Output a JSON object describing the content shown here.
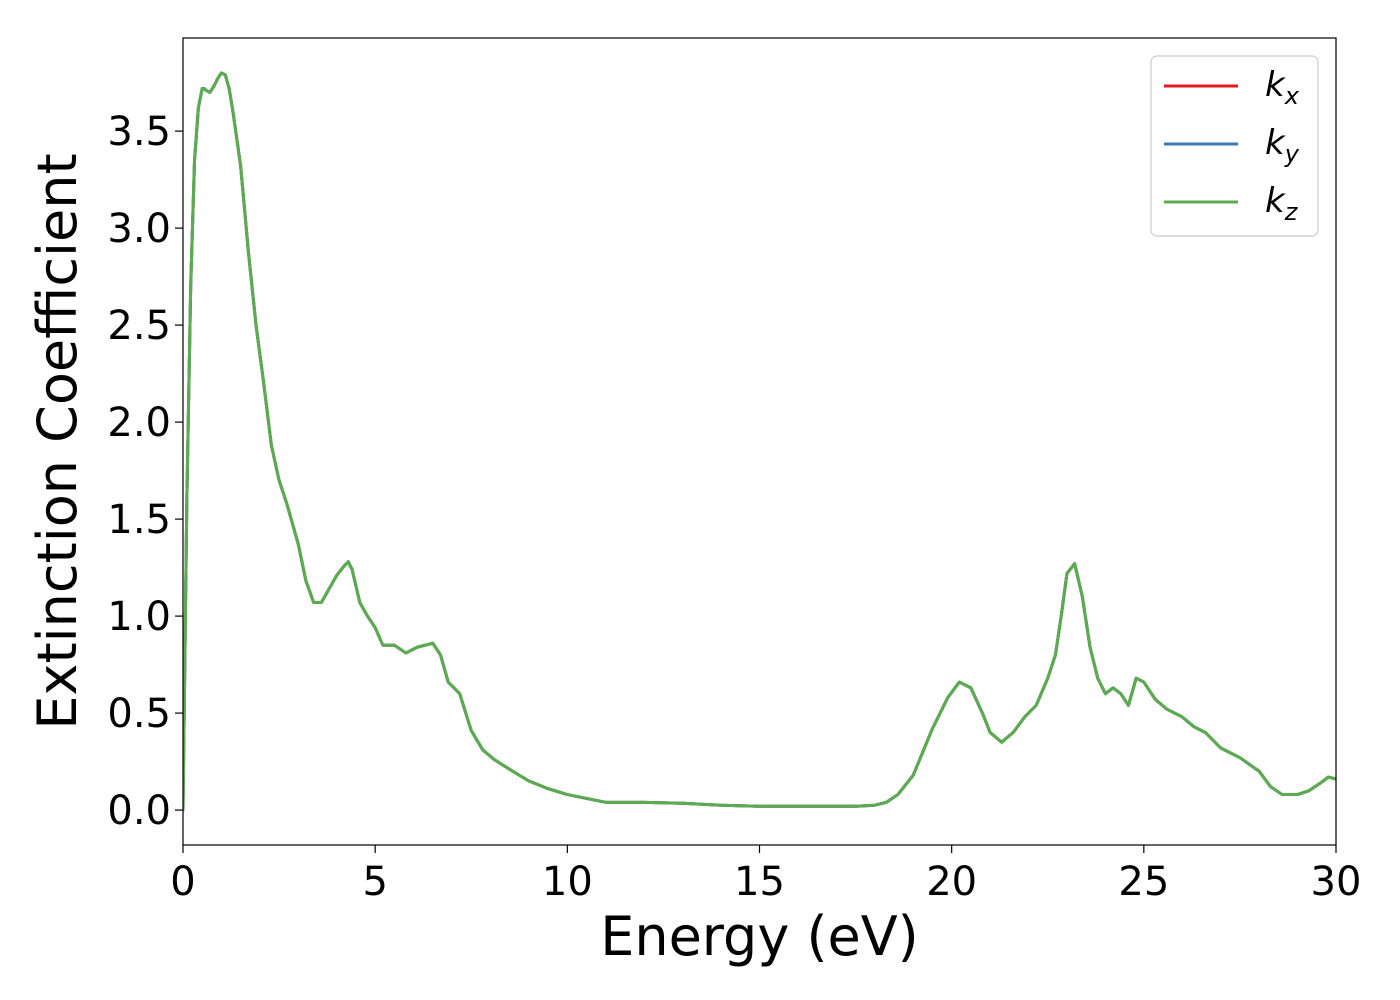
{
  "chart_data": {
    "type": "line",
    "title": "",
    "xlabel": "Energy (eV)",
    "ylabel": "Extinction Coefficient",
    "xlim": [
      0,
      30
    ],
    "ylim": [
      -0.18,
      3.98
    ],
    "xticks": [
      0,
      5,
      10,
      15,
      20,
      25,
      30
    ],
    "xtick_labels": [
      "0",
      "5",
      "10",
      "15",
      "20",
      "25",
      "30"
    ],
    "yticks": [
      0.0,
      0.5,
      1.0,
      1.5,
      2.0,
      2.5,
      3.0,
      3.5
    ],
    "ytick_labels": [
      "0.0",
      "0.5",
      "1.0",
      "1.5",
      "2.0",
      "2.5",
      "3.0",
      "3.5"
    ],
    "grid": false,
    "legend_position": "top-right",
    "series": [
      {
        "name": "k_x",
        "label_main": "k",
        "label_sub": "x",
        "color": "#e41a1c",
        "x": [
          0,
          0.1,
          0.2,
          0.3,
          0.4,
          0.5,
          0.55,
          0.6,
          0.7,
          0.8,
          0.9,
          1.0,
          1.1,
          1.2,
          1.3,
          1.5,
          1.7,
          1.9,
          2.1,
          2.3,
          2.5,
          2.7,
          3.0,
          3.2,
          3.4,
          3.6,
          3.8,
          4.0,
          4.2,
          4.3,
          4.4,
          4.6,
          4.8,
          5.0,
          5.2,
          5.5,
          5.8,
          6.1,
          6.3,
          6.5,
          6.7,
          6.9,
          7.2,
          7.5,
          7.8,
          8.1,
          8.5,
          9.0,
          9.5,
          10.0,
          10.5,
          11.0,
          12.0,
          13.0,
          14.0,
          15.0,
          16.0,
          17.0,
          17.5,
          18.0,
          18.3,
          18.6,
          19.0,
          19.5,
          19.9,
          20.2,
          20.5,
          20.8,
          21.0,
          21.3,
          21.6,
          21.9,
          22.2,
          22.5,
          22.7,
          22.85,
          23.0,
          23.2,
          23.4,
          23.6,
          23.8,
          24.0,
          24.2,
          24.4,
          24.6,
          24.8,
          25.0,
          25.3,
          25.6,
          26.0,
          26.3,
          26.6,
          27.0,
          27.5,
          28.0,
          28.3,
          28.6,
          29.0,
          29.3,
          29.6,
          29.8,
          30.0
        ],
        "y": [
          0.0,
          1.6,
          2.7,
          3.35,
          3.62,
          3.72,
          3.72,
          3.71,
          3.7,
          3.73,
          3.77,
          3.8,
          3.79,
          3.72,
          3.6,
          3.32,
          2.88,
          2.5,
          2.2,
          1.88,
          1.7,
          1.58,
          1.37,
          1.18,
          1.07,
          1.07,
          1.14,
          1.21,
          1.26,
          1.28,
          1.24,
          1.07,
          1.0,
          0.94,
          0.85,
          0.85,
          0.81,
          0.84,
          0.85,
          0.86,
          0.8,
          0.66,
          0.6,
          0.41,
          0.31,
          0.26,
          0.21,
          0.15,
          0.11,
          0.08,
          0.06,
          0.04,
          0.04,
          0.035,
          0.025,
          0.02,
          0.02,
          0.02,
          0.02,
          0.025,
          0.04,
          0.08,
          0.18,
          0.42,
          0.58,
          0.66,
          0.63,
          0.5,
          0.4,
          0.35,
          0.4,
          0.48,
          0.54,
          0.68,
          0.8,
          1.0,
          1.22,
          1.27,
          1.1,
          0.84,
          0.68,
          0.6,
          0.63,
          0.6,
          0.54,
          0.68,
          0.66,
          0.57,
          0.52,
          0.48,
          0.43,
          0.4,
          0.32,
          0.27,
          0.2,
          0.12,
          0.08,
          0.08,
          0.1,
          0.14,
          0.17,
          0.16
        ]
      },
      {
        "name": "k_y",
        "label_main": "k",
        "label_sub": "y",
        "color": "#377eb8",
        "x": [
          0,
          0.1,
          0.2,
          0.3,
          0.4,
          0.5,
          0.55,
          0.6,
          0.7,
          0.8,
          0.9,
          1.0,
          1.1,
          1.2,
          1.3,
          1.5,
          1.7,
          1.9,
          2.1,
          2.3,
          2.5,
          2.7,
          3.0,
          3.2,
          3.4,
          3.6,
          3.8,
          4.0,
          4.2,
          4.3,
          4.4,
          4.6,
          4.8,
          5.0,
          5.2,
          5.5,
          5.8,
          6.1,
          6.3,
          6.5,
          6.7,
          6.9,
          7.2,
          7.5,
          7.8,
          8.1,
          8.5,
          9.0,
          9.5,
          10.0,
          10.5,
          11.0,
          12.0,
          13.0,
          14.0,
          15.0,
          16.0,
          17.0,
          17.5,
          18.0,
          18.3,
          18.6,
          19.0,
          19.5,
          19.9,
          20.2,
          20.5,
          20.8,
          21.0,
          21.3,
          21.6,
          21.9,
          22.2,
          22.5,
          22.7,
          22.85,
          23.0,
          23.2,
          23.4,
          23.6,
          23.8,
          24.0,
          24.2,
          24.4,
          24.6,
          24.8,
          25.0,
          25.3,
          25.6,
          26.0,
          26.3,
          26.6,
          27.0,
          27.5,
          28.0,
          28.3,
          28.6,
          29.0,
          29.3,
          29.6,
          29.8,
          30.0
        ],
        "y": [
          0.0,
          1.6,
          2.7,
          3.35,
          3.62,
          3.72,
          3.72,
          3.71,
          3.7,
          3.73,
          3.77,
          3.8,
          3.79,
          3.72,
          3.6,
          3.32,
          2.88,
          2.5,
          2.2,
          1.88,
          1.7,
          1.58,
          1.37,
          1.18,
          1.07,
          1.07,
          1.14,
          1.21,
          1.26,
          1.28,
          1.24,
          1.07,
          1.0,
          0.94,
          0.85,
          0.85,
          0.81,
          0.84,
          0.85,
          0.86,
          0.8,
          0.66,
          0.6,
          0.41,
          0.31,
          0.26,
          0.21,
          0.15,
          0.11,
          0.08,
          0.06,
          0.04,
          0.04,
          0.035,
          0.025,
          0.02,
          0.02,
          0.02,
          0.02,
          0.025,
          0.04,
          0.08,
          0.18,
          0.42,
          0.58,
          0.66,
          0.63,
          0.5,
          0.4,
          0.35,
          0.4,
          0.48,
          0.54,
          0.68,
          0.8,
          1.0,
          1.22,
          1.27,
          1.1,
          0.84,
          0.68,
          0.6,
          0.63,
          0.6,
          0.54,
          0.68,
          0.66,
          0.57,
          0.52,
          0.48,
          0.43,
          0.4,
          0.32,
          0.27,
          0.2,
          0.12,
          0.08,
          0.08,
          0.1,
          0.14,
          0.17,
          0.16
        ]
      },
      {
        "name": "k_z",
        "label_main": "k",
        "label_sub": "z",
        "color": "#5aad4e",
        "x": [
          0,
          0.1,
          0.2,
          0.3,
          0.4,
          0.5,
          0.55,
          0.6,
          0.7,
          0.8,
          0.9,
          1.0,
          1.1,
          1.2,
          1.3,
          1.5,
          1.7,
          1.9,
          2.1,
          2.3,
          2.5,
          2.7,
          3.0,
          3.2,
          3.4,
          3.6,
          3.8,
          4.0,
          4.2,
          4.3,
          4.4,
          4.6,
          4.8,
          5.0,
          5.2,
          5.5,
          5.8,
          6.1,
          6.3,
          6.5,
          6.7,
          6.9,
          7.2,
          7.5,
          7.8,
          8.1,
          8.5,
          9.0,
          9.5,
          10.0,
          10.5,
          11.0,
          12.0,
          13.0,
          14.0,
          15.0,
          16.0,
          17.0,
          17.5,
          18.0,
          18.3,
          18.6,
          19.0,
          19.5,
          19.9,
          20.2,
          20.5,
          20.8,
          21.0,
          21.3,
          21.6,
          21.9,
          22.2,
          22.5,
          22.7,
          22.85,
          23.0,
          23.2,
          23.4,
          23.6,
          23.8,
          24.0,
          24.2,
          24.4,
          24.6,
          24.8,
          25.0,
          25.3,
          25.6,
          26.0,
          26.3,
          26.6,
          27.0,
          27.5,
          28.0,
          28.3,
          28.6,
          29.0,
          29.3,
          29.6,
          29.8,
          30.0
        ],
        "y": [
          0.0,
          1.6,
          2.7,
          3.35,
          3.62,
          3.72,
          3.72,
          3.71,
          3.7,
          3.73,
          3.77,
          3.8,
          3.79,
          3.72,
          3.6,
          3.32,
          2.88,
          2.5,
          2.2,
          1.88,
          1.7,
          1.58,
          1.37,
          1.18,
          1.07,
          1.07,
          1.14,
          1.21,
          1.26,
          1.28,
          1.24,
          1.07,
          1.0,
          0.94,
          0.85,
          0.85,
          0.81,
          0.84,
          0.85,
          0.86,
          0.8,
          0.66,
          0.6,
          0.41,
          0.31,
          0.26,
          0.21,
          0.15,
          0.11,
          0.08,
          0.06,
          0.04,
          0.04,
          0.035,
          0.025,
          0.02,
          0.02,
          0.02,
          0.02,
          0.025,
          0.04,
          0.08,
          0.18,
          0.42,
          0.58,
          0.66,
          0.63,
          0.5,
          0.4,
          0.35,
          0.4,
          0.48,
          0.54,
          0.68,
          0.8,
          1.0,
          1.22,
          1.27,
          1.1,
          0.84,
          0.68,
          0.6,
          0.63,
          0.6,
          0.54,
          0.68,
          0.66,
          0.57,
          0.52,
          0.48,
          0.43,
          0.4,
          0.32,
          0.27,
          0.2,
          0.12,
          0.08,
          0.08,
          0.1,
          0.14,
          0.17,
          0.16
        ]
      }
    ]
  }
}
